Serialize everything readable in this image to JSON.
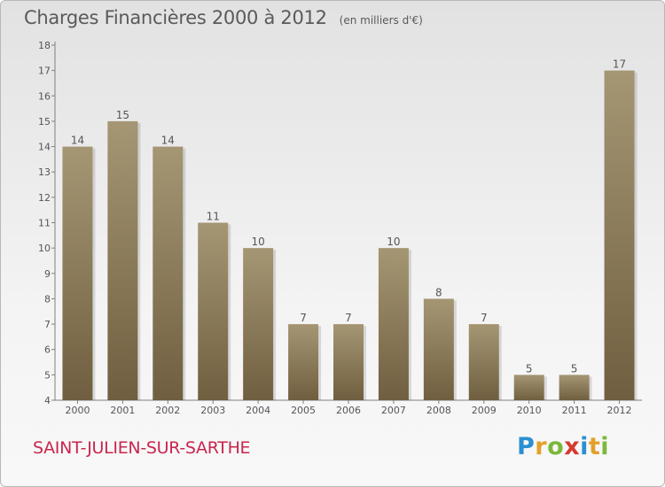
{
  "header": {
    "title": "Charges Financières 2000 à 2012",
    "subtitle": "(en milliers d'€)"
  },
  "commune": "SAINT-JULIEN-SUR-SARTHE",
  "logo": {
    "letters": [
      "P",
      "r",
      "o",
      "x",
      "i",
      "t",
      "i"
    ],
    "colors": [
      "#2b8fd1",
      "#e4a02a",
      "#7bb83a",
      "#d63a2f",
      "#2b8fd1",
      "#e4a02a",
      "#7bb83a"
    ]
  },
  "chart_data": {
    "type": "bar",
    "categories": [
      "2000",
      "2001",
      "2002",
      "2003",
      "2004",
      "2005",
      "2006",
      "2007",
      "2008",
      "2009",
      "2010",
      "2011",
      "2012"
    ],
    "values": [
      14,
      15,
      14,
      11,
      10,
      7,
      7,
      10,
      8,
      7,
      5,
      5,
      17
    ],
    "data_labels": [
      "14",
      "15",
      "14",
      "11",
      "10",
      "7",
      "7",
      "10",
      "8",
      "7",
      "5",
      "5",
      "17"
    ],
    "y_ticks": [
      "4",
      "5",
      "6",
      "7",
      "8",
      "9",
      "10",
      "11",
      "12",
      "13",
      "14",
      "15",
      "16",
      "17",
      "18"
    ],
    "ylim": [
      4,
      18
    ],
    "grid": false,
    "colors": {
      "bar_top": "#a59674",
      "bar_bottom": "#6f5f40",
      "axis": "#808080",
      "text": "#555555"
    }
  }
}
